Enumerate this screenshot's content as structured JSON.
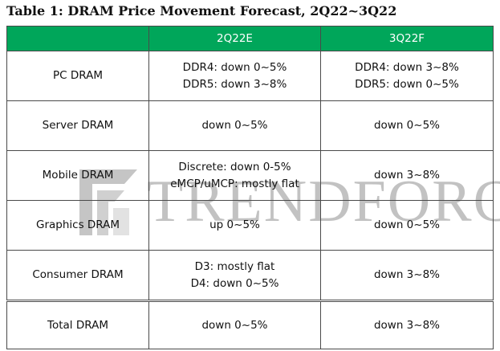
{
  "title": "Table 1: DRAM Price Movement Forecast, 2Q22~3Q22",
  "watermark_text": "TRENDFORCE",
  "colors": {
    "header_bg": "#00a65a",
    "header_text": "#ffffff",
    "border": "#4a4a4a"
  },
  "table": {
    "columns": [
      "",
      "2Q22E",
      "3Q22F"
    ],
    "rows": [
      {
        "label": "PC DRAM",
        "q2": [
          "DDR4: down 0~5%",
          "DDR5: down 3~8%"
        ],
        "q3": [
          "DDR4: down 3~8%",
          "DDR5: down 0~5%"
        ]
      },
      {
        "label": "Server DRAM",
        "q2": [
          "down 0~5%"
        ],
        "q3": [
          "down 0~5%"
        ]
      },
      {
        "label": "Mobile DRAM",
        "q2": [
          "Discrete: down 0-5%",
          "eMCP/uMCP: mostly flat"
        ],
        "q3": [
          "down 3~8%"
        ]
      },
      {
        "label": "Graphics DRAM",
        "q2": [
          "up 0~5%"
        ],
        "q3": [
          "down 0~5%"
        ]
      },
      {
        "label": "Consumer DRAM",
        "q2": [
          "D3: mostly flat",
          "D4: down 0~5%"
        ],
        "q3": [
          "down 3~8%"
        ]
      },
      {
        "label": "Total DRAM",
        "q2": [
          "down 0~5%"
        ],
        "q3": [
          "down 3~8%"
        ]
      }
    ]
  }
}
